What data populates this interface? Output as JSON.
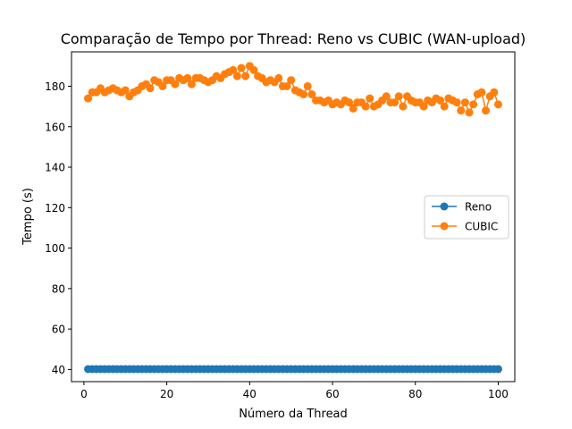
{
  "chart_data": {
    "type": "line",
    "title": "Comparação de Tempo por Thread: Reno vs CUBIC (WAN-upload)",
    "xlabel": "Número da Thread",
    "ylabel": "Tempo (s)",
    "xlim": [
      -3,
      104
    ],
    "ylim": [
      34,
      197
    ],
    "xticks": [
      0,
      20,
      40,
      60,
      80,
      100
    ],
    "yticks": [
      40,
      60,
      80,
      100,
      120,
      140,
      160,
      180
    ],
    "grid": false,
    "legend_position": "center-right",
    "x": [
      1,
      2,
      3,
      4,
      5,
      6,
      7,
      8,
      9,
      10,
      11,
      12,
      13,
      14,
      15,
      16,
      17,
      18,
      19,
      20,
      21,
      22,
      23,
      24,
      25,
      26,
      27,
      28,
      29,
      30,
      31,
      32,
      33,
      34,
      35,
      36,
      37,
      38,
      39,
      40,
      41,
      42,
      43,
      44,
      45,
      46,
      47,
      48,
      49,
      50,
      51,
      52,
      53,
      54,
      55,
      56,
      57,
      58,
      59,
      60,
      61,
      62,
      63,
      64,
      65,
      66,
      67,
      68,
      69,
      70,
      71,
      72,
      73,
      74,
      75,
      76,
      77,
      78,
      79,
      80,
      81,
      82,
      83,
      84,
      85,
      86,
      87,
      88,
      89,
      90,
      91,
      92,
      93,
      94,
      95,
      96,
      97,
      98,
      99,
      100
    ],
    "series": [
      {
        "name": "Reno",
        "color": "#1f77b4",
        "values": [
          40.2,
          40.2,
          40.2,
          40.2,
          40.2,
          40.2,
          40.2,
          40.2,
          40.2,
          40.2,
          40.2,
          40.2,
          40.2,
          40.2,
          40.2,
          40.2,
          40.2,
          40.2,
          40.2,
          40.2,
          40.2,
          40.2,
          40.2,
          40.2,
          40.2,
          40.2,
          40.2,
          40.2,
          40.2,
          40.2,
          40.2,
          40.2,
          40.2,
          40.2,
          40.2,
          40.2,
          40.2,
          40.2,
          40.2,
          40.2,
          40.2,
          40.2,
          40.2,
          40.2,
          40.2,
          40.2,
          40.2,
          40.2,
          40.2,
          40.2,
          40.2,
          40.2,
          40.2,
          40.2,
          40.2,
          40.2,
          40.2,
          40.2,
          40.2,
          40.2,
          40.2,
          40.2,
          40.2,
          40.2,
          40.2,
          40.2,
          40.2,
          40.2,
          40.2,
          40.2,
          40.2,
          40.2,
          40.2,
          40.2,
          40.2,
          40.2,
          40.2,
          40.2,
          40.2,
          40.2,
          40.2,
          40.2,
          40.2,
          40.2,
          40.2,
          40.2,
          40.2,
          40.2,
          40.2,
          40.2,
          40.2,
          40.2,
          40.2,
          40.2,
          40.2,
          40.2,
          40.2,
          40.2,
          40.2,
          40.2
        ]
      },
      {
        "name": "CUBIC",
        "color": "#ff7f0e",
        "values": [
          174,
          177,
          177,
          179,
          177,
          178,
          179,
          178,
          177,
          178,
          175,
          177,
          178,
          180,
          181,
          179,
          183,
          182,
          180,
          183,
          183,
          181,
          184,
          183,
          184,
          181,
          184,
          184,
          183,
          182,
          183,
          185,
          184,
          186,
          187,
          188,
          185,
          189,
          185,
          190,
          188,
          185,
          184,
          182,
          183,
          182,
          184,
          180,
          180,
          183,
          178,
          177,
          176,
          180,
          176,
          173,
          173,
          172,
          173,
          171,
          172,
          171,
          173,
          172,
          169,
          172,
          172,
          170,
          174,
          170,
          171,
          173,
          175,
          172,
          172,
          175,
          170,
          175,
          173,
          172,
          172,
          170,
          173,
          172,
          174,
          173,
          170,
          174,
          173,
          172,
          168,
          172,
          167,
          171,
          176,
          177,
          168,
          175,
          177,
          171
        ]
      }
    ]
  }
}
